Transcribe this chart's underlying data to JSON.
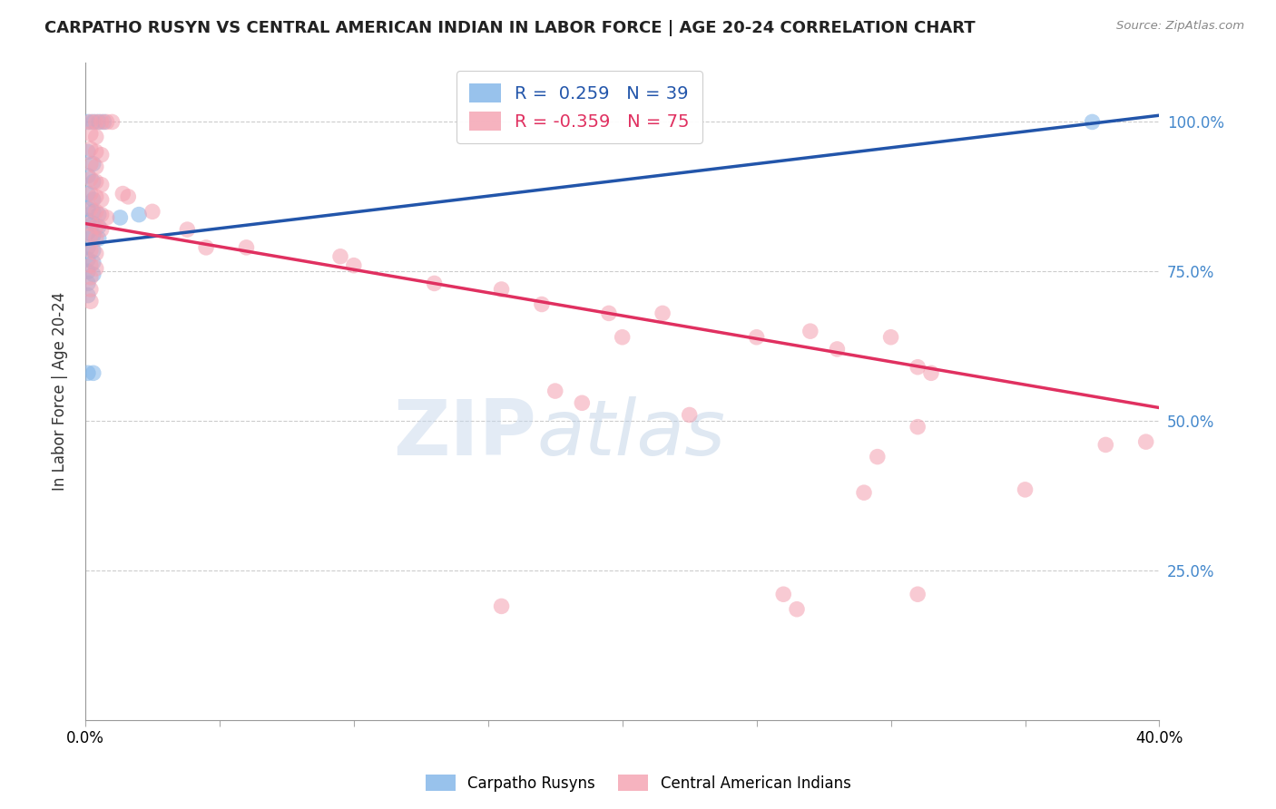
{
  "title": "CARPATHO RUSYN VS CENTRAL AMERICAN INDIAN IN LABOR FORCE | AGE 20-24 CORRELATION CHART",
  "source": "Source: ZipAtlas.com",
  "ylabel": "In Labor Force | Age 20-24",
  "xlim": [
    0.0,
    0.4
  ],
  "ylim": [
    0.0,
    1.1
  ],
  "blue_R": 0.259,
  "blue_N": 39,
  "pink_R": -0.359,
  "pink_N": 75,
  "blue_color": "#7EB3E8",
  "pink_color": "#F4A0B0",
  "trendline_blue": "#2255AA",
  "trendline_pink": "#E03060",
  "watermark_text": "ZIPatlas",
  "legend_label_blue": "Carpatho Rusyns",
  "legend_label_pink": "Central American Indians",
  "blue_points": [
    [
      0.001,
      1.0
    ],
    [
      0.003,
      1.0
    ],
    [
      0.005,
      1.0
    ],
    [
      0.007,
      1.0
    ],
    [
      0.001,
      0.95
    ],
    [
      0.003,
      0.93
    ],
    [
      0.001,
      0.91
    ],
    [
      0.003,
      0.9
    ],
    [
      0.001,
      0.88
    ],
    [
      0.003,
      0.87
    ],
    [
      0.001,
      0.855
    ],
    [
      0.003,
      0.85
    ],
    [
      0.005,
      0.845
    ],
    [
      0.001,
      0.835
    ],
    [
      0.003,
      0.83
    ],
    [
      0.005,
      0.825
    ],
    [
      0.001,
      0.815
    ],
    [
      0.003,
      0.81
    ],
    [
      0.005,
      0.805
    ],
    [
      0.001,
      0.79
    ],
    [
      0.003,
      0.785
    ],
    [
      0.001,
      0.77
    ],
    [
      0.003,
      0.765
    ],
    [
      0.001,
      0.75
    ],
    [
      0.003,
      0.745
    ],
    [
      0.001,
      0.73
    ],
    [
      0.001,
      0.71
    ],
    [
      0.013,
      0.84
    ],
    [
      0.02,
      0.845
    ],
    [
      0.001,
      0.58
    ],
    [
      0.003,
      0.58
    ],
    [
      0.375,
      1.0
    ]
  ],
  "pink_points": [
    [
      0.002,
      1.0
    ],
    [
      0.004,
      1.0
    ],
    [
      0.006,
      1.0
    ],
    [
      0.008,
      1.0
    ],
    [
      0.01,
      1.0
    ],
    [
      0.002,
      0.98
    ],
    [
      0.004,
      0.975
    ],
    [
      0.002,
      0.955
    ],
    [
      0.004,
      0.95
    ],
    [
      0.006,
      0.945
    ],
    [
      0.002,
      0.93
    ],
    [
      0.004,
      0.925
    ],
    [
      0.002,
      0.905
    ],
    [
      0.004,
      0.9
    ],
    [
      0.006,
      0.895
    ],
    [
      0.002,
      0.88
    ],
    [
      0.004,
      0.875
    ],
    [
      0.006,
      0.87
    ],
    [
      0.002,
      0.855
    ],
    [
      0.004,
      0.85
    ],
    [
      0.006,
      0.845
    ],
    [
      0.008,
      0.84
    ],
    [
      0.002,
      0.83
    ],
    [
      0.004,
      0.825
    ],
    [
      0.006,
      0.82
    ],
    [
      0.002,
      0.81
    ],
    [
      0.004,
      0.805
    ],
    [
      0.002,
      0.785
    ],
    [
      0.004,
      0.78
    ],
    [
      0.002,
      0.76
    ],
    [
      0.004,
      0.755
    ],
    [
      0.002,
      0.74
    ],
    [
      0.002,
      0.72
    ],
    [
      0.002,
      0.7
    ],
    [
      0.014,
      0.88
    ],
    [
      0.016,
      0.875
    ],
    [
      0.025,
      0.85
    ],
    [
      0.038,
      0.82
    ],
    [
      0.045,
      0.79
    ],
    [
      0.06,
      0.79
    ],
    [
      0.095,
      0.775
    ],
    [
      0.1,
      0.76
    ],
    [
      0.155,
      0.72
    ],
    [
      0.13,
      0.73
    ],
    [
      0.17,
      0.695
    ],
    [
      0.195,
      0.68
    ],
    [
      0.2,
      0.64
    ],
    [
      0.215,
      0.68
    ],
    [
      0.25,
      0.64
    ],
    [
      0.27,
      0.65
    ],
    [
      0.3,
      0.64
    ],
    [
      0.28,
      0.62
    ],
    [
      0.31,
      0.59
    ],
    [
      0.315,
      0.58
    ],
    [
      0.175,
      0.55
    ],
    [
      0.185,
      0.53
    ],
    [
      0.225,
      0.51
    ],
    [
      0.31,
      0.49
    ],
    [
      0.295,
      0.44
    ],
    [
      0.35,
      0.385
    ],
    [
      0.38,
      0.46
    ],
    [
      0.395,
      0.465
    ],
    [
      0.29,
      0.38
    ],
    [
      0.26,
      0.21
    ],
    [
      0.31,
      0.21
    ],
    [
      0.155,
      0.19
    ],
    [
      0.265,
      0.185
    ]
  ],
  "background_color": "#ffffff",
  "grid_color": "#cccccc",
  "trendline_blue_intercept": 0.795,
  "trendline_blue_slope": 0.54,
  "trendline_pink_intercept": 0.83,
  "trendline_pink_slope": -0.77
}
